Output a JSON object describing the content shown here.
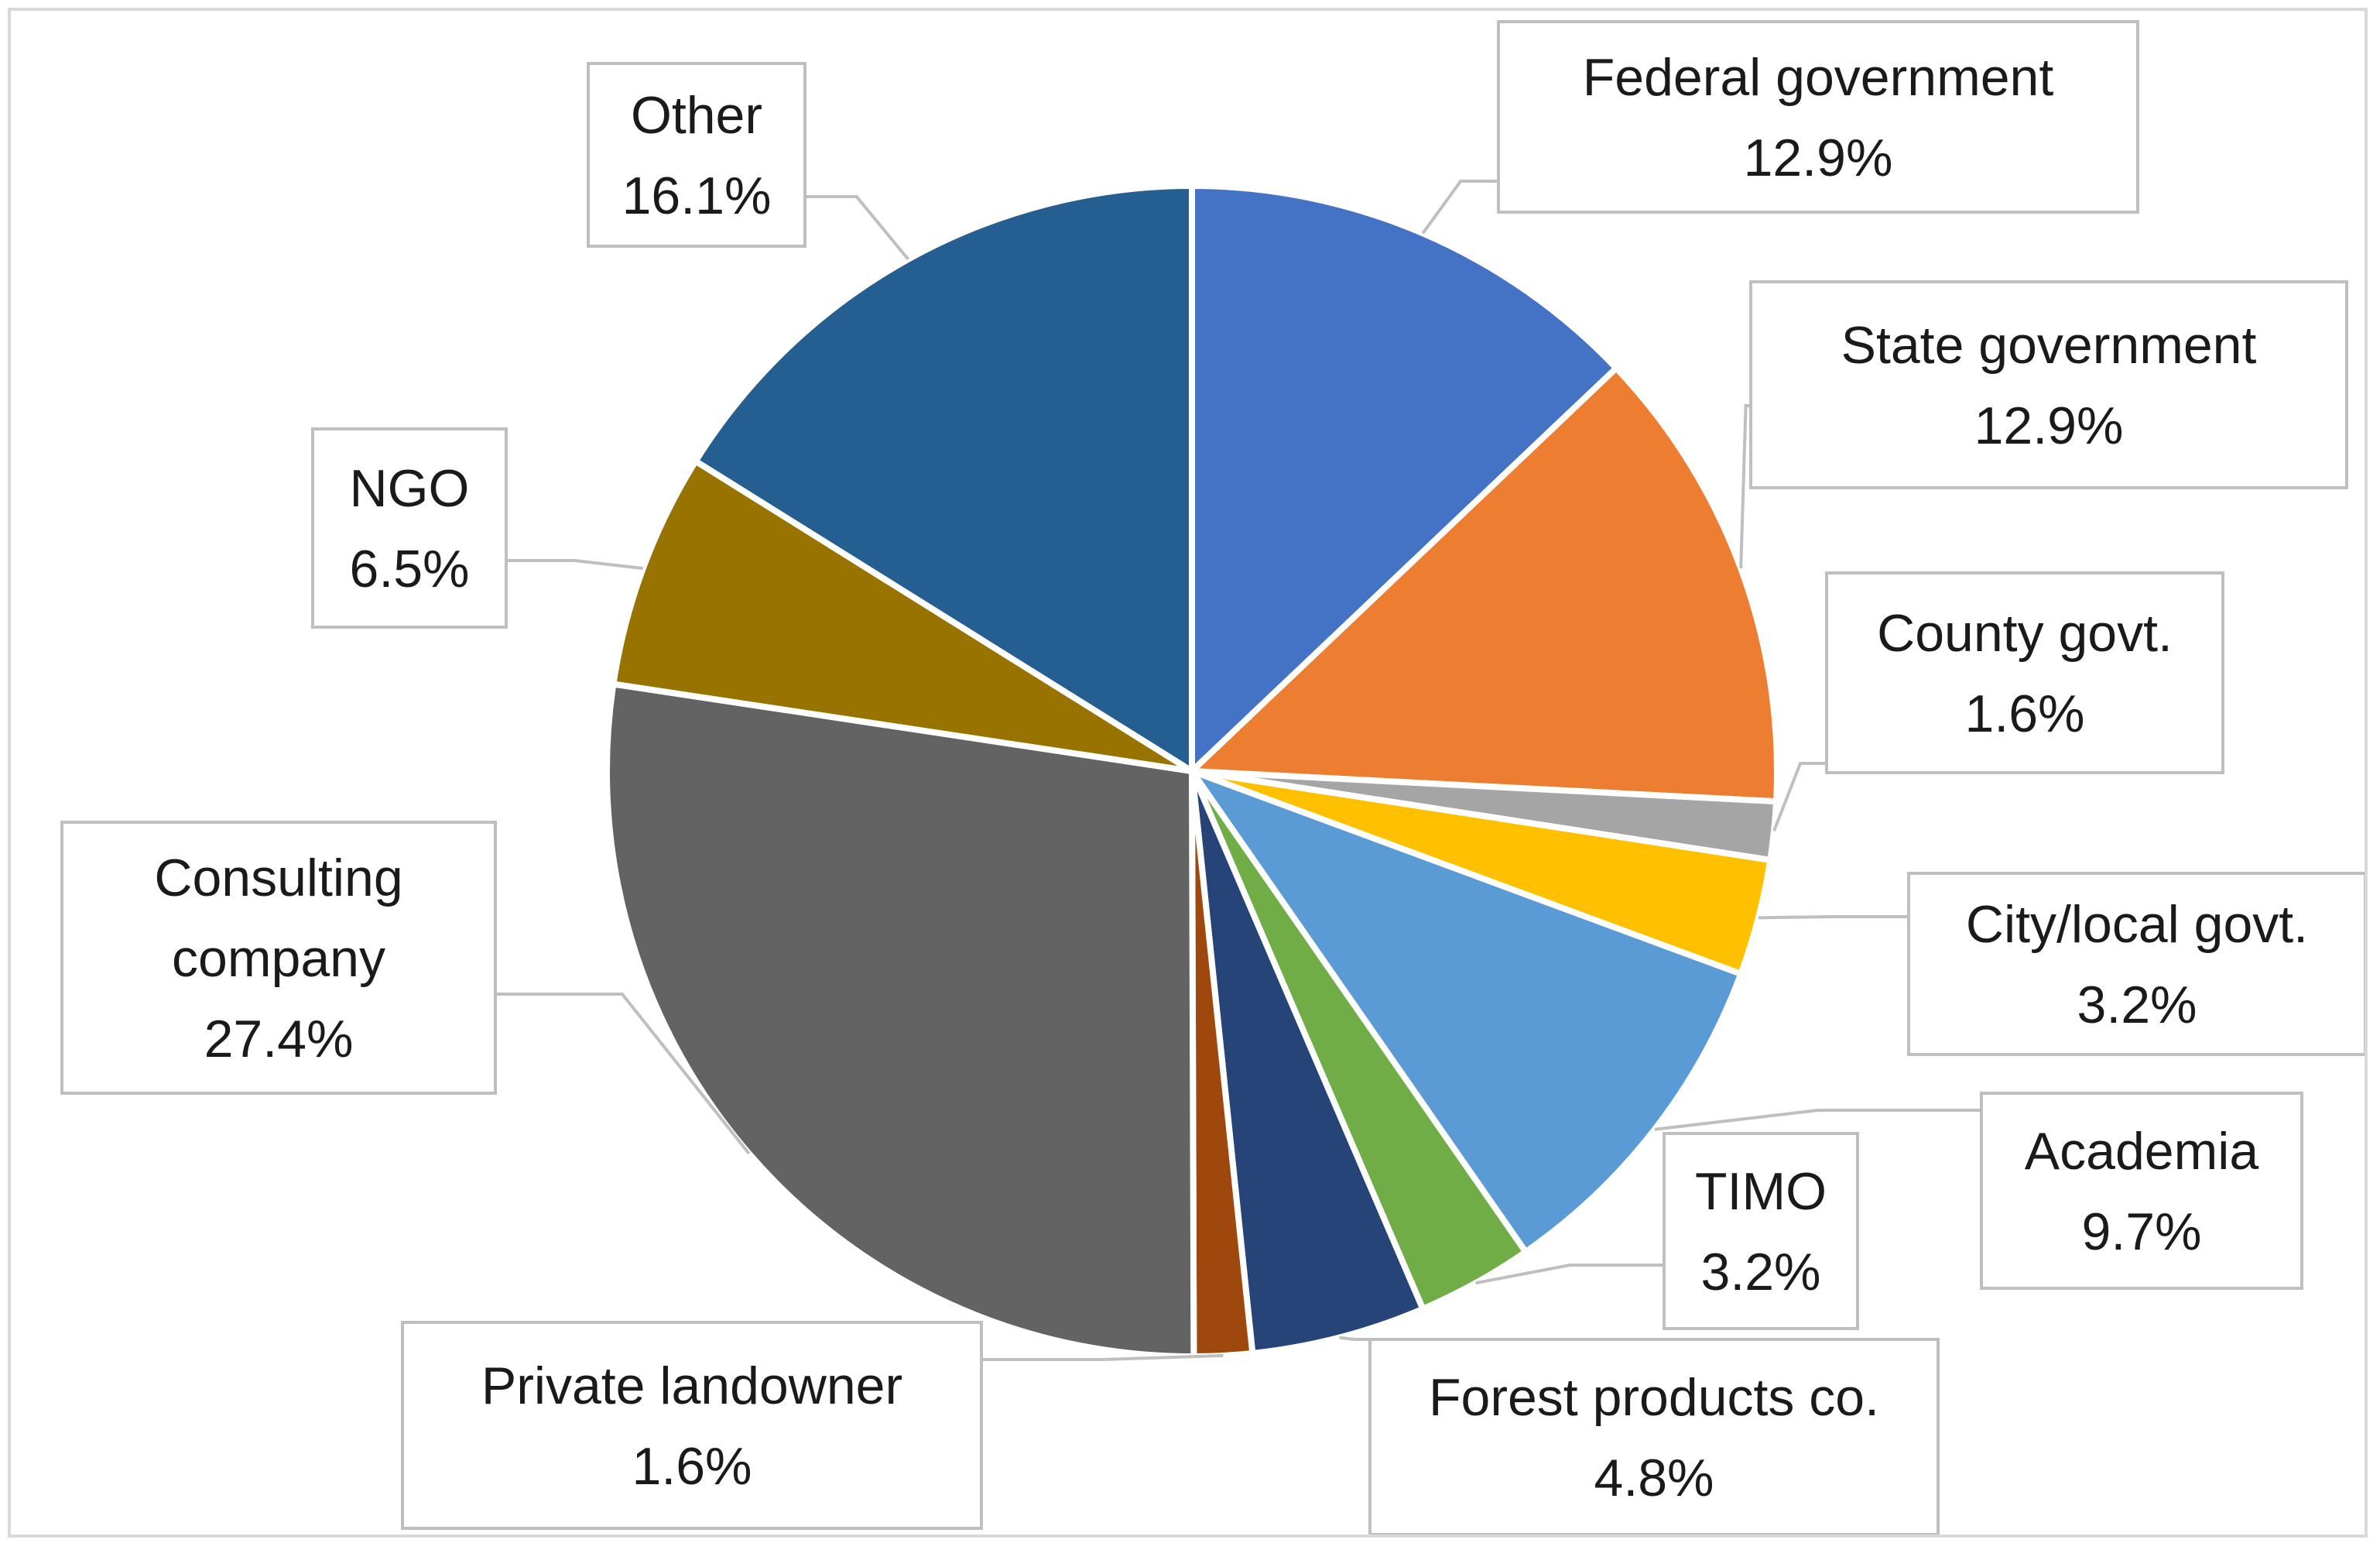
{
  "chart_data": {
    "type": "pie",
    "title": "",
    "start_angle_deg": 0,
    "direction": "clockwise",
    "label_format": "category + percent",
    "slices": [
      {
        "name": "Federal government",
        "lines": [
          "Federal government"
        ],
        "value_label": "12.9%",
        "value": 12.9,
        "color": "#4472C4"
      },
      {
        "name": "State government",
        "lines": [
          "State government"
        ],
        "value_label": "12.9%",
        "value": 12.9,
        "color": "#ED7D31"
      },
      {
        "name": "County govt.",
        "lines": [
          "County govt."
        ],
        "value_label": "1.6%",
        "value": 1.6,
        "color": "#A5A5A5"
      },
      {
        "name": "City/local govt.",
        "lines": [
          "City/local govt."
        ],
        "value_label": "3.2%",
        "value": 3.2,
        "color": "#FFC000"
      },
      {
        "name": "Academia",
        "lines": [
          "Academia"
        ],
        "value_label": "9.7%",
        "value": 9.7,
        "color": "#5B9BD5"
      },
      {
        "name": "TIMO",
        "lines": [
          "TIMO"
        ],
        "value_label": "3.2%",
        "value": 3.2,
        "color": "#70AD47"
      },
      {
        "name": "Forest products co.",
        "lines": [
          "Forest products co."
        ],
        "value_label": "4.8%",
        "value": 4.8,
        "color": "#264478"
      },
      {
        "name": "Private landowner",
        "lines": [
          "Private landowner"
        ],
        "value_label": "1.6%",
        "value": 1.6,
        "color": "#9E480E"
      },
      {
        "name": "Consulting company",
        "lines": [
          "Consulting",
          "company"
        ],
        "value_label": "27.4%",
        "value": 27.4,
        "color": "#636363"
      },
      {
        "name": "NGO",
        "lines": [
          "NGO"
        ],
        "value_label": "6.5%",
        "value": 6.5,
        "color": "#997300"
      },
      {
        "name": "Other",
        "lines": [
          "Other"
        ],
        "value_label": "16.1%",
        "value": 16.1,
        "color": "#255E91"
      }
    ]
  }
}
